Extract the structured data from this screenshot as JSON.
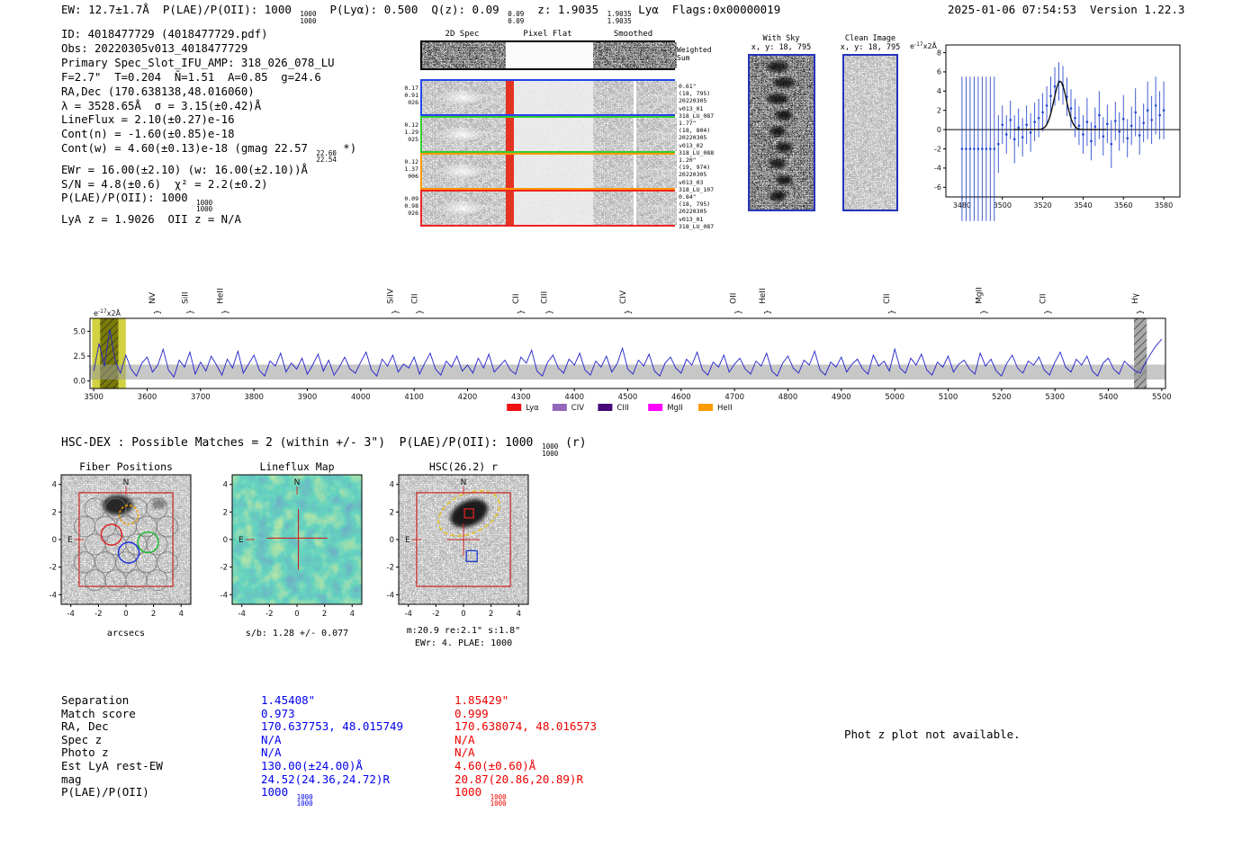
{
  "header": {
    "left": "EW: 12.7±1.7Å  P(LAE)/P(OII): 1000 [[1000|1000]]  P(Lyα): 0.500  Q(z): 0.09 [[0.09|0.09]]  z: 1.9035 [[1.9035|1.9035]] Lyα  Flags:0x00000019",
    "right": "2025-01-06 07:54:53  Version 1.22.3"
  },
  "info_lines": [
    "ID: 4018477729 (4018477729.pdf)",
    "Obs: 20220305v013_4018477729",
    "Primary Spec_Slot_IFU_AMP: 318_026_078_LU",
    "F=2.7\"  T=0.204  N̄=1.51  A=0.85  g=24.6",
    "RA,Dec (170.638138,48.016060)",
    "λ = 3528.65Å  σ = 3.15(±0.42)Å",
    "LineFlux = 2.10(±0.27)e-16",
    "Cont(n) = -1.60(±0.85)e-18",
    "Cont(w) = 4.60(±0.13)e-18 (gmag 22.57 [[22.60|22.54]] *)",
    "EWr = 16.00(±2.10) (w: 16.00(±2.10))Å",
    "S/N = 4.8(±0.6)  χ² = 2.2(±0.2)",
    "P(LAE)/P(OII): 1000 [[1000|1000]]",
    "LyA z = 1.9026  OII z = N/A"
  ],
  "spec2d": {
    "col_headers": [
      "2D Spec",
      "Pixel Flat",
      "Smoothed"
    ],
    "weighted_sum": [
      "Weighted",
      "Sum"
    ],
    "rows": [
      {
        "border": "#000000",
        "left": [],
        "right": []
      },
      {
        "border": "#2244ee",
        "left": [
          "0.17",
          "0.91",
          "026"
        ],
        "right": [
          "0.61\"",
          "(18, 795)",
          "20220305",
          "v013_01",
          "318_LU_087"
        ]
      },
      {
        "border": "#33cc33",
        "left": [
          "0.12",
          "1.29",
          "025"
        ],
        "right": [
          "1.77\"",
          "(18, 804)",
          "20220305",
          "v013_02",
          "318_LU_088"
        ]
      },
      {
        "border": "#ff9900",
        "left": [
          "0.12",
          "1.37",
          "006"
        ],
        "right": [
          "1.20\"",
          "(19, 974)",
          "20220305",
          "v013_03",
          "318_LU_107"
        ]
      },
      {
        "border": "#ee2222",
        "left": [
          "0.09",
          "0.98",
          "026"
        ],
        "right": [
          "0.84\"",
          "(18, 795)",
          "20220305",
          "v013_01",
          "318_LU_087"
        ]
      }
    ]
  },
  "withsky": {
    "title": "With Sky",
    "coords": "x, y: 18, 795"
  },
  "clean": {
    "title": "Clean Image",
    "coords": "x, y: 18, 795"
  },
  "hsc_line": "HSC-DEX : Possible Matches = 2 (within +/- 3\")  P(LAE)/P(OII): 1000 [[1000|1000]] (r)",
  "cutouts": {
    "axis_ticks": [
      -4,
      -2,
      0,
      2,
      4
    ],
    "compass": {
      "north": "N",
      "east": "E"
    },
    "fiber": {
      "title": "Fiber Positions",
      "xlabel": "arcsecs"
    },
    "lineflux": {
      "title": "Lineflux Map",
      "caption": "s/b: 1.28 +/- 0.077"
    },
    "hsc": {
      "title": "HSC(26.2) r",
      "caption1": "m:20.9 re:2.1\" s:1.8\"",
      "caption2": "EWr: 4. PLAE: 1000"
    }
  },
  "match_table": {
    "labels": [
      "Separation",
      "Match score",
      "RA, Dec",
      "Spec z",
      "Photo z",
      "Est LyA rest-EW",
      "mag",
      "P(LAE)/P(OII)"
    ],
    "col1": {
      "color": "#0000ee",
      "values": [
        "1.45408\"",
        "0.973",
        "170.637753, 48.015749",
        "N/A",
        "N/A",
        "130.00(±24.00)Å",
        "24.52(24.36,24.72)R",
        "1000 [[1000|1000]]"
      ]
    },
    "col2": {
      "color": "#ee0000",
      "values": [
        "1.85429\"",
        "0.999",
        "170.638074, 48.016573",
        "N/A",
        "N/A",
        "4.60(±0.60)Å",
        "20.87(20.86,20.89)R",
        "1000 [[1000|1000]]"
      ]
    }
  },
  "photz_note": "Phot z plot not available.",
  "chart_data": [
    {
      "type": "scatter",
      "name": "zoomed_emission_line_fit",
      "annotation": "e-17x2Å",
      "xlim": [
        3472,
        3588
      ],
      "ylim": [
        -7,
        8.8
      ],
      "xticks": [
        3480,
        3500,
        3520,
        3540,
        3560,
        3580
      ],
      "yticks": [
        -6,
        -4,
        -2,
        0,
        2,
        4,
        6,
        8
      ],
      "point_color": "#2244cc",
      "fit_color": "#111111",
      "fit": {
        "center": 3528.65,
        "sigma": 3.15,
        "peak": 5.0
      },
      "x": [
        3480,
        3482,
        3484,
        3486,
        3488,
        3490,
        3492,
        3494,
        3496,
        3498,
        3500,
        3502,
        3504,
        3506,
        3508,
        3510,
        3512,
        3514,
        3516,
        3518,
        3520,
        3522,
        3524,
        3526,
        3528,
        3530,
        3532,
        3534,
        3536,
        3538,
        3540,
        3542,
        3544,
        3546,
        3548,
        3550,
        3552,
        3554,
        3556,
        3558,
        3560,
        3562,
        3564,
        3566,
        3568,
        3570,
        3572,
        3574,
        3576,
        3578,
        3580
      ],
      "y": [
        -2,
        -2,
        -2,
        -2,
        -2,
        -2,
        -2,
        -2,
        -2,
        -1.5,
        0.5,
        -0.5,
        1.0,
        -1.0,
        0.2,
        -0.8,
        0.5,
        -0.3,
        0.8,
        1.2,
        1.8,
        2.5,
        3.5,
        4.5,
        5.0,
        4.6,
        3.4,
        2.2,
        1.2,
        0.4,
        -0.5,
        0.8,
        -1.2,
        0.3,
        1.5,
        -0.7,
        0.6,
        -1.5,
        0.9,
        -0.2,
        1.1,
        -0.9,
        0.4,
        1.8,
        -0.6,
        0.7,
        2.0,
        1.0,
        2.5,
        1.5,
        2.0
      ],
      "yerr": [
        7.5,
        7.5,
        7.5,
        7.5,
        7.5,
        7.5,
        7.5,
        7.5,
        7.5,
        3,
        2,
        2,
        2,
        2.5,
        2,
        2,
        2,
        2,
        2,
        2,
        2,
        2,
        2,
        2,
        2,
        2,
        2,
        2,
        2,
        2,
        2,
        2.5,
        2,
        2,
        2.5,
        2,
        2,
        2.5,
        2,
        2,
        2.5,
        2,
        2,
        2.5,
        2,
        2,
        3,
        2.5,
        3,
        2.5,
        3
      ]
    },
    {
      "type": "line",
      "name": "full_spectrum",
      "annotation": "e-17x2Å",
      "x_start": 3500,
      "x_step": 10,
      "xlim": [
        3493,
        5507
      ],
      "ylim": [
        -0.75,
        6.3
      ],
      "xticks": [
        3500,
        3600,
        3700,
        3800,
        3900,
        4000,
        4100,
        4200,
        4300,
        4400,
        4500,
        4600,
        4700,
        4800,
        4900,
        5000,
        5100,
        5200,
        5300,
        5400,
        5500
      ],
      "yticks": [
        0.0,
        2.5,
        5.0
      ],
      "line_color": "#2222cc",
      "noise_band": {
        "lo": 0.15,
        "hi": 1.65,
        "color": "#999999"
      },
      "bands": [
        {
          "x0": 3497,
          "x1": 3560,
          "color": "#c9c920",
          "hatch": false
        },
        {
          "x0": 3512,
          "x1": 3546,
          "color": "#6b6b00",
          "hatch": true
        },
        {
          "x0": 5448,
          "x1": 5472,
          "color": "#9a9a9a",
          "hatch": true
        }
      ],
      "markers": [
        {
          "label": "NV",
          "color": "#dd2222",
          "wave": 3614
        },
        {
          "label": "SiII",
          "color": "#dd2222",
          "wave": 3676
        },
        {
          "label": "HeII",
          "color": "#6a5acd",
          "wave": 3742
        },
        {
          "label": "SiIV",
          "color": "#dd2222",
          "wave": 4060
        },
        {
          "label": "CII",
          "color": "#ddaa00",
          "wave": 4106
        },
        {
          "label": "CII",
          "color": "#9467bd",
          "wave": 4295
        },
        {
          "label": "CIII",
          "color": "#9467bd",
          "wave": 4348
        },
        {
          "label": "CIV",
          "color": "#9467bd",
          "wave": 4496
        },
        {
          "label": "OII",
          "color": "#ee00ee",
          "wave": 4702
        },
        {
          "label": "HeII",
          "color": "#dd2222",
          "wave": 4757
        },
        {
          "label": "CII",
          "color": "#ddaa00",
          "wave": 4990
        },
        {
          "label": "MgII",
          "color": "#ee00ee",
          "wave": 5162
        },
        {
          "label": "CII",
          "color": "#ee66cc",
          "wave": 5282
        },
        {
          "label": "Hγ",
          "color": "#ff66bb",
          "wave": 5455
        }
      ],
      "legend": [
        {
          "label": "Lyα",
          "color": "#ee1111"
        },
        {
          "label": "CIV",
          "color": "#9467bd"
        },
        {
          "label": "CIII",
          "color": "#470878"
        },
        {
          "label": "MgII",
          "color": "#ff00ff"
        },
        {
          "label": "HeII",
          "color": "#ff9900"
        }
      ],
      "values": [
        1.0,
        3.8,
        1.5,
        5.2,
        2.0,
        0.8,
        2.6,
        1.2,
        0.5,
        1.8,
        2.4,
        0.9,
        1.6,
        3.2,
        1.1,
        0.4,
        2.1,
        1.4,
        2.9,
        0.7,
        1.9,
        1.0,
        2.5,
        1.6,
        0.6,
        2.2,
        1.3,
        3.0,
        0.8,
        1.7,
        2.6,
        1.1,
        0.5,
        2.0,
        1.5,
        2.8,
        0.9,
        1.8,
        1.2,
        2.3,
        0.7,
        1.6,
        2.7,
        1.0,
        2.1,
        0.6,
        1.4,
        2.4,
        1.2,
        0.8,
        1.9,
        2.9,
        1.1,
        0.5,
        2.2,
        1.5,
        2.6,
        0.9,
        1.7,
        1.3,
        2.4,
        0.7,
        1.8,
        2.8,
        1.2,
        0.6,
        2.0,
        1.4,
        2.5,
        1.0,
        1.6,
        0.8,
        2.3,
        1.3,
        2.7,
        0.9,
        1.5,
        2.1,
        1.1,
        0.7,
        2.4,
        1.8,
        3.1,
        1.0,
        0.5,
        1.9,
        2.6,
        1.3,
        0.8,
        2.2,
        1.6,
        2.8,
        1.1,
        0.6,
        2.0,
        1.4,
        2.5,
        0.9,
        1.7,
        3.3,
        1.2,
        0.7,
        2.1,
        1.5,
        2.7,
        1.0,
        0.5,
        1.8,
        2.4,
        1.3,
        0.8,
        2.2,
        1.6,
        2.9,
        1.1,
        0.6,
        1.9,
        1.4,
        2.6,
        0.9,
        1.7,
        2.3,
        1.2,
        0.7,
        2.0,
        1.5,
        2.8,
        1.0,
        0.5,
        1.8,
        2.5,
        1.3,
        0.8,
        2.1,
        1.6,
        3.0,
        1.1,
        0.6,
        1.9,
        1.4,
        2.4,
        0.9,
        1.7,
        2.2,
        1.2,
        0.7,
        2.6,
        1.5,
        2.0,
        1.0,
        3.2,
        1.3,
        0.8,
        2.3,
        1.6,
        2.7,
        1.1,
        0.6,
        1.9,
        1.4,
        2.5,
        0.9,
        1.7,
        2.1,
        1.2,
        0.7,
        2.8,
        1.5,
        2.2,
        1.0,
        0.5,
        1.8,
        2.6,
        1.3,
        0.8,
        2.0,
        1.6,
        2.4,
        1.1,
        0.6,
        1.9,
        2.9,
        1.4,
        0.9,
        2.2,
        1.6,
        2.5,
        1.0,
        0.5,
        1.8,
        2.3,
        1.2,
        0.7,
        2.0,
        1.5,
        1.0,
        0.8,
        1.9,
        2.8,
        3.6,
        4.2
      ]
    }
  ]
}
